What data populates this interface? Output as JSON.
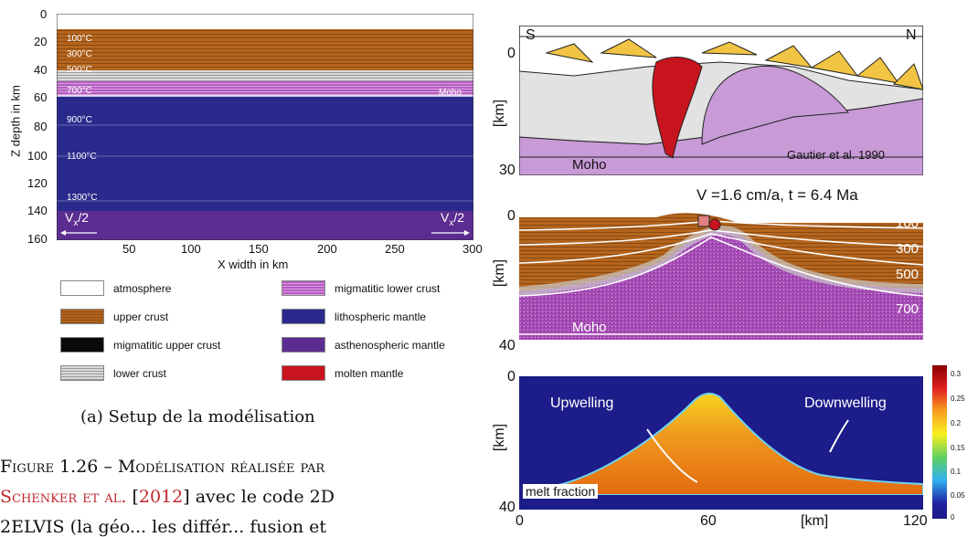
{
  "fig_a": {
    "y_axis_label": "Z depth in km",
    "x_axis_label": "X width in km",
    "y_ticks": [
      "0",
      "20",
      "40",
      "60",
      "80",
      "100",
      "120",
      "140",
      "160"
    ],
    "x_ticks": [
      "50",
      "100",
      "150",
      "200",
      "250",
      "300"
    ],
    "temps": [
      "100°C",
      "300°C",
      "500°C",
      "700°C",
      "900°C",
      "1100°C",
      "1300°C"
    ],
    "moho": "Moho",
    "vx_left": "V",
    "vx_left_sub": "x",
    "vx_left_tail": "/2",
    "vx_right": "V",
    "vx_right_sub": "x",
    "vx_right_tail": "/2",
    "legend": [
      {
        "label": "atmosphere",
        "color": "#ffffff"
      },
      {
        "label": "upper crust",
        "color": "#b5651d"
      },
      {
        "label": "migmatitic upper crust",
        "color": "#0a0a0a"
      },
      {
        "label": "lower crust",
        "color": "#b8b8b8"
      },
      {
        "label": "migmatitic lower crust",
        "color": "#b45cc0"
      },
      {
        "label": "lithospheric mantle",
        "color": "#2a2a8c"
      },
      {
        "label": "asthenospheric mantle",
        "color": "#5b2d91"
      },
      {
        "label": "molten mantle",
        "color": "#c8141e"
      }
    ],
    "caption": "(a) Setup de la modélisation"
  },
  "body_text": {
    "line1": "Figure 1.26 – Modélisation réalisée par",
    "line2_author": "Schenker et al.",
    "line2_year": "2012",
    "line2_rest": "avec le code 2D",
    "line3": "2ELVIS (la géo... les différ... fusion et"
  },
  "fig_b": {
    "panel1": {
      "s": "S",
      "n": "N",
      "y0": "0",
      "ylabel": "[km]",
      "y30": "30",
      "moho": "Moho",
      "credit": "Gautier et al. 1990"
    },
    "panel2": {
      "title": "V =1.6 cm/a, t = 6.4 Ma",
      "y0": "0",
      "ylabel": "[km]",
      "y40": "40",
      "moho": "Moho",
      "isotherms": [
        "100",
        "300",
        "500",
        "700"
      ]
    },
    "panel3": {
      "y0": "0",
      "ylabel": "[km]",
      "y40": "40",
      "x_ticks": [
        "0",
        "60",
        "[km]",
        "120"
      ],
      "upwelling": "Upwelling",
      "downwelling": "Downwelling",
      "melt": "melt fraction",
      "colorbar": [
        "0.3",
        "0.25",
        "0.2",
        "0.15",
        "0.1",
        "0.05",
        "0"
      ]
    }
  }
}
